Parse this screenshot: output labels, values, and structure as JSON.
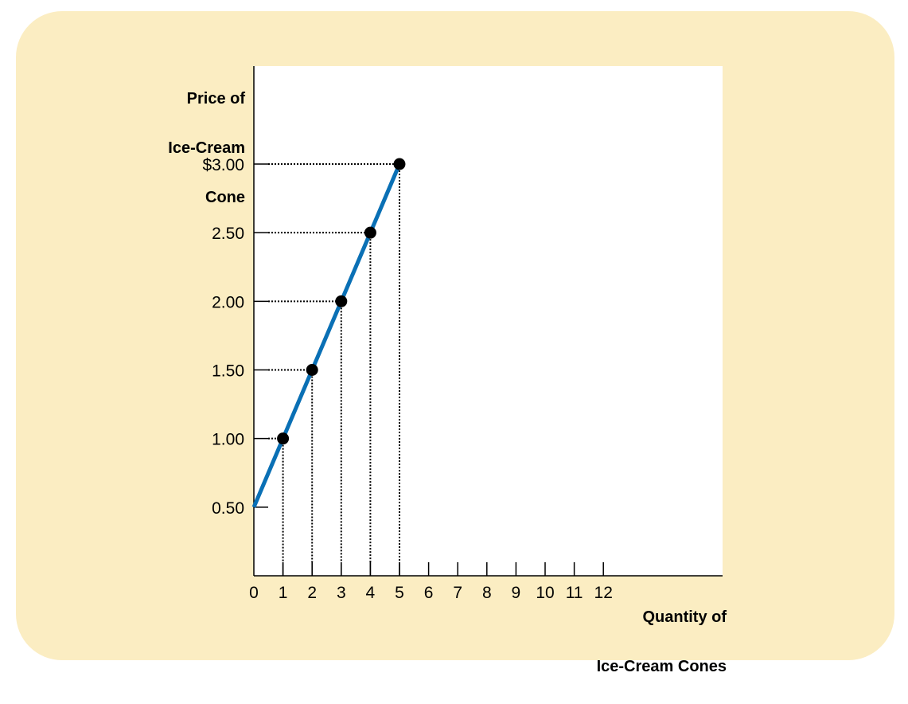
{
  "colors": {
    "panel": "#fbedc2",
    "line": "#0a70b5",
    "points": "#000000"
  },
  "chart_data": {
    "type": "line",
    "title": "",
    "xlabel_lines": [
      "Quantity of",
      "Ice-Cream Cones"
    ],
    "ylabel_lines": [
      "Price of",
      "Ice-Cream",
      "Cone"
    ],
    "xlim": [
      0,
      12
    ],
    "ylim": [
      0,
      3
    ],
    "x_ticks": [
      0,
      1,
      2,
      3,
      4,
      5,
      6,
      7,
      8,
      9,
      10,
      11,
      12
    ],
    "x_tick_labels": [
      "0",
      "1",
      "2",
      "3",
      "4",
      "5",
      "6",
      "7",
      "8",
      "9",
      "10",
      "11",
      "12"
    ],
    "y_ticks": [
      0.5,
      1.0,
      1.5,
      2.0,
      2.5,
      3.0
    ],
    "y_tick_labels": [
      "0.50",
      "1.00",
      "1.50",
      "2.00",
      "2.50",
      "$3.00"
    ],
    "line": {
      "x": [
        0,
        5
      ],
      "y": [
        0.5,
        3.0
      ]
    },
    "points": {
      "x": [
        1,
        2,
        3,
        4,
        5
      ],
      "y": [
        1.0,
        1.5,
        2.0,
        2.5,
        3.0
      ]
    },
    "dotted_guides": true,
    "grid": false
  }
}
